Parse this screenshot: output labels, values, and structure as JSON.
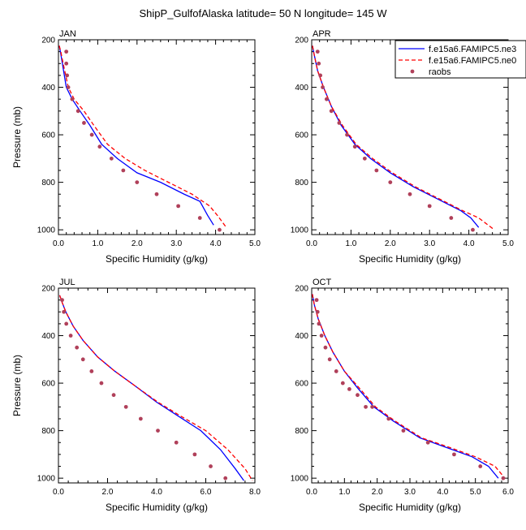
{
  "title": "ShipP_GulfofAlaska  latitude= 50 N longitude= 145 W",
  "legend": [
    {
      "label": "f.e15a6.FAMIPC5.ne3",
      "color": "#0000ff",
      "style": "solid"
    },
    {
      "label": "f.e15a6.FAMIPC5.ne0",
      "color": "#ff0000",
      "style": "dashed"
    },
    {
      "label": "raobs",
      "color": "#b0405a",
      "style": "dot"
    }
  ],
  "chart_data": [
    {
      "type": "line",
      "panel": "JAN",
      "xlabel": "Specific Humidity (g/kg)",
      "ylabel": "Pressure (mb)",
      "xlim": [
        0,
        5
      ],
      "xticks": [
        "0.0",
        "1.0",
        "2.0",
        "3.0",
        "4.0",
        "5.0"
      ],
      "ylim": [
        1020,
        200
      ],
      "yticks": [
        "200",
        "400",
        "600",
        "800",
        "1000"
      ],
      "series": [
        {
          "name": "f.e15a6.FAMIPC5.ne3",
          "x": [
            0.02,
            0.05,
            0.1,
            0.2,
            0.35,
            0.55,
            0.8,
            1.1,
            1.5,
            2.0,
            2.6,
            3.2,
            3.6,
            3.8,
            3.95
          ],
          "y": [
            225,
            250,
            300,
            400,
            450,
            500,
            560,
            640,
            700,
            760,
            800,
            850,
            880,
            940,
            980
          ]
        },
        {
          "name": "f.e15a6.FAMIPC5.ne0",
          "x": [
            0.02,
            0.06,
            0.12,
            0.25,
            0.4,
            0.65,
            0.9,
            1.25,
            1.7,
            2.2,
            2.8,
            3.4,
            3.85,
            4.05,
            4.25
          ],
          "y": [
            225,
            250,
            300,
            400,
            450,
            500,
            560,
            640,
            700,
            750,
            800,
            850,
            900,
            940,
            985
          ]
        },
        {
          "name": "raobs",
          "x": [
            0.2,
            0.2,
            0.22,
            0.25,
            0.35,
            0.5,
            0.65,
            0.85,
            1.05,
            1.35,
            1.65,
            2.0,
            2.5,
            3.05,
            3.6,
            4.1
          ],
          "y": [
            250,
            300,
            350,
            400,
            450,
            500,
            550,
            600,
            650,
            700,
            750,
            800,
            850,
            900,
            950,
            1000
          ]
        }
      ]
    },
    {
      "type": "line",
      "panel": "APR",
      "xlabel": "Specific Humidity (g/kg)",
      "ylabel": "",
      "xlim": [
        0,
        5
      ],
      "xticks": [
        "0.0",
        "1.0",
        "2.0",
        "3.0",
        "4.0",
        "5.0"
      ],
      "ylim": [
        1020,
        200
      ],
      "yticks": [
        "200",
        "400",
        "600",
        "800",
        "1000"
      ],
      "series": [
        {
          "name": "f.e15a6.FAMIPC5.ne3",
          "x": [
            0.02,
            0.06,
            0.15,
            0.3,
            0.5,
            0.75,
            1.1,
            1.5,
            2.0,
            2.6,
            3.2,
            3.8,
            4.05,
            4.25
          ],
          "y": [
            225,
            260,
            330,
            400,
            480,
            560,
            640,
            700,
            760,
            820,
            870,
            920,
            950,
            990
          ]
        },
        {
          "name": "f.e15a6.FAMIPC5.ne0",
          "x": [
            0.02,
            0.06,
            0.15,
            0.3,
            0.5,
            0.78,
            1.13,
            1.55,
            2.05,
            2.65,
            3.25,
            3.85,
            4.25,
            4.65
          ],
          "y": [
            225,
            260,
            330,
            400,
            480,
            560,
            640,
            700,
            760,
            820,
            870,
            920,
            950,
            1000
          ]
        },
        {
          "name": "raobs",
          "x": [
            0.15,
            0.18,
            0.22,
            0.28,
            0.38,
            0.5,
            0.7,
            0.9,
            1.1,
            1.35,
            1.65,
            2.0,
            2.5,
            3.0,
            3.55,
            4.1
          ],
          "y": [
            250,
            300,
            350,
            400,
            450,
            500,
            550,
            600,
            650,
            700,
            750,
            800,
            850,
            900,
            950,
            1000
          ]
        }
      ]
    },
    {
      "type": "line",
      "panel": "JUL",
      "xlabel": "Specific Humidity (g/kg)",
      "ylabel": "Pressure (mb)",
      "xlim": [
        0,
        8
      ],
      "xticks": [
        "0.0",
        "2.0",
        "4.0",
        "6.0",
        "8.0"
      ],
      "ylim": [
        1020,
        200
      ],
      "yticks": [
        "200",
        "400",
        "600",
        "800",
        "1000"
      ],
      "series": [
        {
          "name": "f.e15a6.FAMIPC5.ne3",
          "x": [
            0.05,
            0.15,
            0.3,
            0.6,
            1.0,
            1.6,
            2.3,
            3.1,
            4.0,
            4.9,
            5.8,
            6.6,
            7.2,
            7.55
          ],
          "y": [
            230,
            260,
            300,
            360,
            420,
            490,
            550,
            610,
            680,
            740,
            800,
            880,
            960,
            1010
          ]
        },
        {
          "name": "f.e15a6.FAMIPC5.ne0",
          "x": [
            0.05,
            0.15,
            0.3,
            0.6,
            1.0,
            1.6,
            2.3,
            3.1,
            4.05,
            5.0,
            6.0,
            6.9,
            7.6,
            7.9
          ],
          "y": [
            230,
            260,
            300,
            360,
            420,
            490,
            550,
            610,
            680,
            740,
            800,
            880,
            960,
            1010
          ]
        },
        {
          "name": "raobs",
          "x": [
            0.15,
            0.22,
            0.32,
            0.5,
            0.75,
            1.0,
            1.35,
            1.75,
            2.25,
            2.75,
            3.35,
            4.05,
            4.8,
            5.55,
            6.2,
            6.8
          ],
          "y": [
            250,
            300,
            350,
            400,
            450,
            500,
            550,
            600,
            650,
            700,
            750,
            800,
            850,
            900,
            950,
            1000
          ]
        }
      ]
    },
    {
      "type": "line",
      "panel": "OCT",
      "xlabel": "Specific Humidity (g/kg)",
      "ylabel": "",
      "xlim": [
        0,
        6
      ],
      "xticks": [
        "0.0",
        "1.0",
        "2.0",
        "3.0",
        "4.0",
        "5.0",
        "6.0"
      ],
      "ylim": [
        1020,
        200
      ],
      "yticks": [
        "200",
        "400",
        "600",
        "800",
        "1000"
      ],
      "series": [
        {
          "name": "f.e15a6.FAMIPC5.ne3",
          "x": [
            0.02,
            0.08,
            0.2,
            0.4,
            0.65,
            1.0,
            1.4,
            1.9,
            2.5,
            3.3,
            4.1,
            4.9,
            5.4,
            5.7
          ],
          "y": [
            225,
            270,
            330,
            400,
            470,
            550,
            620,
            700,
            760,
            830,
            870,
            910,
            950,
            1000
          ]
        },
        {
          "name": "f.e15a6.FAMIPC5.ne0",
          "x": [
            0.02,
            0.08,
            0.2,
            0.4,
            0.65,
            1.0,
            1.45,
            1.95,
            2.55,
            3.35,
            4.2,
            5.0,
            5.6,
            5.9
          ],
          "y": [
            225,
            270,
            330,
            400,
            470,
            550,
            620,
            700,
            760,
            830,
            870,
            910,
            950,
            1000
          ]
        },
        {
          "name": "raobs",
          "x": [
            0.15,
            0.18,
            0.22,
            0.3,
            0.42,
            0.55,
            0.75,
            0.95,
            1.15,
            1.4,
            1.65,
            1.85,
            2.35,
            2.8,
            3.55,
            4.35,
            5.15,
            5.85
          ],
          "y": [
            250,
            300,
            350,
            400,
            450,
            500,
            550,
            600,
            625,
            650,
            700,
            700,
            750,
            800,
            850,
            900,
            950,
            1000
          ]
        }
      ]
    }
  ]
}
